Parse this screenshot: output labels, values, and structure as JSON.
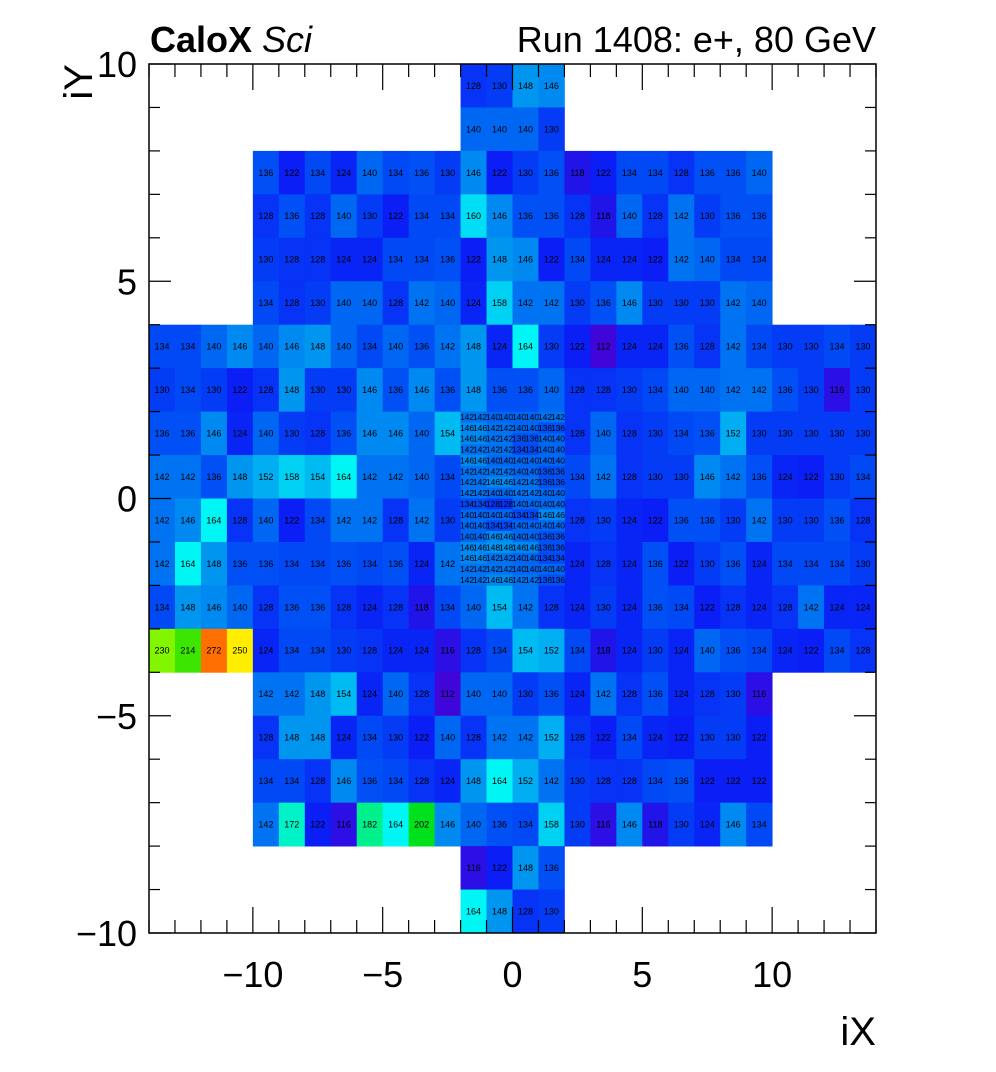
{
  "header": {
    "brand": "CaloX",
    "brand_suffix": "Sci",
    "run_title": "Run 1408: e+, 80 GeV"
  },
  "chart_data": {
    "type": "heatmap",
    "xlabel": "iX",
    "ylabel": "iY",
    "xlim": [
      -14,
      14
    ],
    "ylim": [
      -10,
      10
    ],
    "x_ticks": [
      -10,
      -5,
      0,
      5,
      10
    ],
    "y_ticks": [
      -10,
      -5,
      0,
      5,
      10
    ],
    "x_tick_labels": [
      "−10",
      "−5",
      "0",
      "5",
      "10"
    ],
    "y_tick_labels": [
      "−10",
      "−5",
      "0",
      "5",
      "10"
    ],
    "color_scale": "rainbow (purple low → blue → cyan → green → yellow → red high)",
    "color_range": [
      110,
      280
    ],
    "regions": [
      {
        "x0": -2,
        "x1": 2,
        "y0": 8,
        "y1": 10,
        "nx": 4,
        "ny": 2,
        "rows_top_to_bottom": [
          [
            128,
            130,
            148,
            146
          ],
          [
            140,
            140,
            140,
            130
          ]
        ]
      },
      {
        "x0": -10,
        "x1": 10,
        "y0": 4,
        "y1": 8,
        "nx": 20,
        "ny": 4,
        "rows_top_to_bottom": [
          [
            136,
            122,
            134,
            124,
            140,
            134,
            136,
            130,
            146,
            122,
            130,
            136,
            118,
            122,
            134,
            134,
            128,
            136,
            136,
            140
          ],
          [
            128,
            136,
            128,
            140,
            130,
            122,
            134,
            134,
            160,
            146,
            136,
            136,
            128,
            118,
            140,
            128,
            142,
            130,
            136,
            136
          ],
          [
            130,
            128,
            128,
            124,
            124,
            134,
            134,
            136,
            122,
            148,
            146,
            122,
            134,
            124,
            124,
            122,
            142,
            140,
            134,
            134
          ],
          [
            134,
            128,
            130,
            140,
            140,
            128,
            142,
            140,
            124,
            158,
            142,
            142,
            130,
            136,
            146,
            130,
            130,
            130,
            142,
            140
          ]
        ]
      },
      {
        "x0": -14,
        "x1": 14,
        "y0": -4,
        "y1": 4,
        "nx": 28,
        "ny": 8,
        "skip": {
          "x0": -2,
          "x1": 2,
          "y0": -2,
          "y1": 2
        },
        "rows_top_to_bottom": [
          [
            134,
            134,
            140,
            146,
            140,
            146,
            148,
            140,
            134,
            140,
            136,
            142,
            148,
            124,
            164,
            130,
            122,
            112,
            124,
            124,
            136,
            128,
            142,
            134,
            130,
            130,
            134,
            130
          ],
          [
            130,
            134,
            130,
            122,
            128,
            148,
            130,
            130,
            146,
            136,
            146,
            136,
            148,
            136,
            136,
            140,
            128,
            128,
            130,
            134,
            140,
            140,
            142,
            142,
            136,
            130,
            116,
            130
          ],
          [
            136,
            136,
            146,
            124,
            140,
            130,
            128,
            136,
            146,
            146,
            140,
            154,
            null,
            null,
            null,
            null,
            128,
            140,
            128,
            130,
            134,
            136,
            152,
            130,
            130,
            130,
            130,
            130
          ],
          [
            142,
            142,
            136,
            148,
            152,
            158,
            154,
            164,
            142,
            142,
            140,
            134,
            null,
            null,
            null,
            null,
            134,
            142,
            128,
            130,
            130,
            146,
            142,
            136,
            124,
            122,
            130,
            134
          ],
          [
            142,
            146,
            164,
            128,
            140,
            122,
            134,
            142,
            142,
            128,
            142,
            130,
            null,
            null,
            null,
            null,
            128,
            130,
            124,
            122,
            136,
            136,
            130,
            142,
            130,
            130,
            136,
            128
          ],
          [
            142,
            164,
            148,
            136,
            136,
            134,
            134,
            136,
            134,
            136,
            124,
            142,
            null,
            null,
            null,
            null,
            124,
            128,
            124,
            136,
            122,
            130,
            136,
            124,
            134,
            134,
            134,
            130
          ],
          [
            134,
            148,
            146,
            140,
            128,
            136,
            136,
            128,
            124,
            128,
            118,
            134,
            140,
            154,
            142,
            128,
            124,
            130,
            124,
            136,
            134,
            122,
            128,
            124,
            128,
            142,
            124,
            124
          ],
          [
            230,
            214,
            272,
            250,
            124,
            134,
            134,
            130,
            128,
            124,
            124,
            116,
            128,
            134,
            154,
            152,
            134,
            118,
            124,
            130,
            124,
            140,
            136,
            134,
            124,
            122,
            134,
            128
          ]
        ]
      },
      {
        "x0": -2,
        "x1": 2,
        "y0": -2,
        "y1": 2,
        "nx": 8,
        "ny": 16,
        "rows_top_to_bottom": [
          [
            142,
            142,
            140,
            140,
            140,
            140,
            142,
            142
          ],
          [
            146,
            146,
            142,
            142,
            140,
            140,
            136,
            136
          ],
          [
            146,
            146,
            142,
            142,
            136,
            136,
            140,
            140
          ],
          [
            142,
            142,
            142,
            142,
            134,
            134,
            140,
            140
          ],
          [
            146,
            146,
            140,
            140,
            140,
            140,
            140,
            140
          ],
          [
            142,
            142,
            142,
            142,
            140,
            140,
            136,
            136
          ],
          [
            142,
            142,
            146,
            146,
            142,
            142,
            136,
            136
          ],
          [
            142,
            142,
            140,
            140,
            142,
            142,
            140,
            140
          ],
          [
            134,
            134,
            128,
            128,
            140,
            140,
            140,
            140
          ],
          [
            140,
            140,
            140,
            140,
            134,
            134,
            146,
            146
          ],
          [
            140,
            140,
            134,
            134,
            140,
            140,
            140,
            140
          ],
          [
            140,
            140,
            146,
            146,
            140,
            140,
            136,
            136
          ],
          [
            146,
            146,
            148,
            148,
            146,
            146,
            136,
            136
          ],
          [
            146,
            146,
            142,
            142,
            140,
            140,
            134,
            134
          ],
          [
            142,
            142,
            142,
            142,
            140,
            140,
            140,
            140
          ],
          [
            142,
            142,
            146,
            146,
            142,
            142,
            136,
            136
          ]
        ]
      },
      {
        "x0": -10,
        "x1": 10,
        "y0": -8,
        "y1": -4,
        "nx": 20,
        "ny": 4,
        "rows_top_to_bottom": [
          [
            142,
            142,
            148,
            154,
            124,
            140,
            128,
            112,
            140,
            140,
            130,
            136,
            124,
            142,
            128,
            136,
            124,
            128,
            130,
            116
          ],
          [
            128,
            148,
            148,
            124,
            134,
            130,
            122,
            140,
            128,
            142,
            142,
            152,
            128,
            122,
            134,
            124,
            122,
            130,
            130,
            122
          ],
          [
            134,
            134,
            128,
            146,
            136,
            134,
            128,
            124,
            148,
            164,
            152,
            142,
            130,
            128,
            128,
            134,
            136,
            122,
            122,
            122
          ],
          [
            142,
            172,
            122,
            116,
            182,
            164,
            202,
            146,
            140,
            136,
            134,
            158,
            130,
            116,
            146,
            118,
            130,
            124,
            146,
            134
          ]
        ]
      },
      {
        "x0": -2,
        "x1": 2,
        "y0": -10,
        "y1": -8,
        "nx": 4,
        "ny": 2,
        "rows_top_to_bottom": [
          [
            116,
            122,
            148,
            136
          ],
          [
            164,
            148,
            128,
            130
          ]
        ]
      }
    ]
  }
}
